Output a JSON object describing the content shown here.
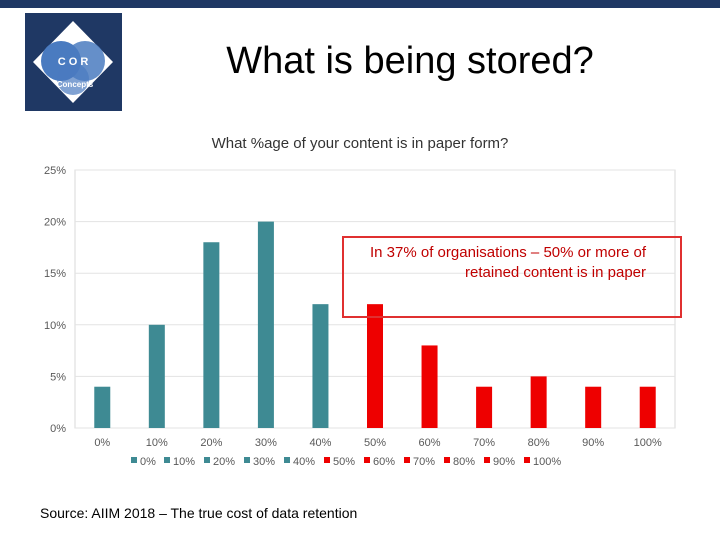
{
  "slide": {
    "title": "What is being stored?",
    "logo_text_top": "C O R",
    "logo_text_bottom": "Concepts",
    "source": "Source: AIIM 2018 – The true cost of data retention"
  },
  "callout": {
    "text": "In 37% of organisations – 50% or more of retained content is in paper"
  },
  "colors": {
    "teal": "#3e8a93",
    "red": "#ee0000",
    "border_red": "#e03030",
    "navy": "#1f3864"
  },
  "chart_data": {
    "type": "bar",
    "title": "What %age of your content is in paper form?",
    "categories": [
      "0%",
      "10%",
      "20%",
      "30%",
      "40%",
      "50%",
      "60%",
      "70%",
      "80%",
      "90%",
      "100%"
    ],
    "values": [
      4,
      10,
      18,
      20,
      12,
      12,
      8,
      4,
      5,
      4,
      4
    ],
    "bar_colors": [
      "#3e8a93",
      "#3e8a93",
      "#3e8a93",
      "#3e8a93",
      "#3e8a93",
      "#ee0000",
      "#ee0000",
      "#ee0000",
      "#ee0000",
      "#ee0000",
      "#ee0000"
    ],
    "ylim": [
      0,
      25
    ],
    "yticks": [
      "0%",
      "5%",
      "10%",
      "15%",
      "20%",
      "25%"
    ],
    "legend": [
      "0%",
      "10%",
      "20%",
      "30%",
      "40%",
      "50%",
      "60%",
      "70%",
      "80%",
      "90%",
      "100%"
    ],
    "legend_position": "bottom",
    "grid": true
  }
}
